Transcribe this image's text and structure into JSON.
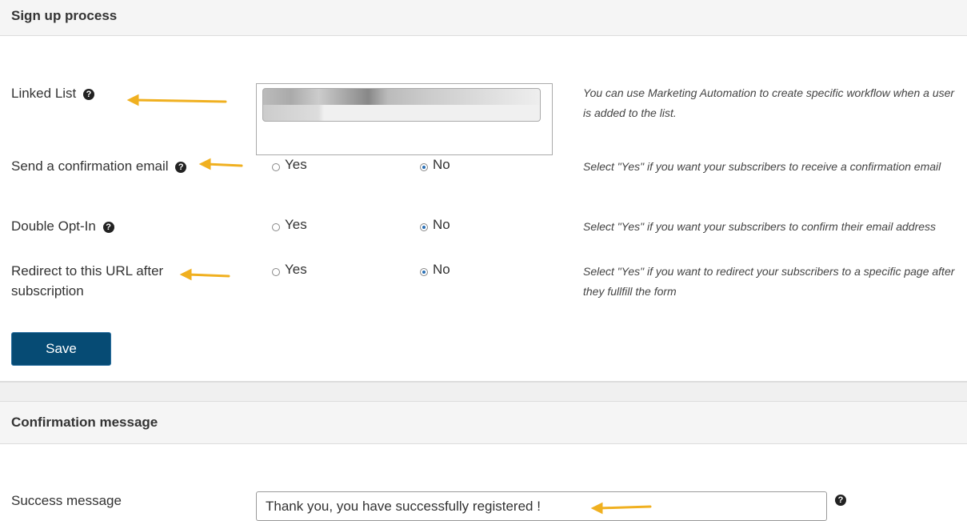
{
  "signup": {
    "title": "Sign up process",
    "linked_list": {
      "label": "Linked List",
      "help": "You can use Marketing Automation to create specific workflow when a user is added to the list."
    },
    "confirmation_email": {
      "label": "Send a confirmation email",
      "yes": "Yes",
      "no": "No",
      "selected": "No",
      "help": "Select \"Yes\" if you want your subscribers to receive a confirmation email"
    },
    "double_optin": {
      "label": "Double Opt-In",
      "yes": "Yes",
      "no": "No",
      "selected": "No",
      "help": "Select \"Yes\" if you want your subscribers to confirm their email address"
    },
    "redirect": {
      "label": "Redirect to this URL after subscription",
      "yes": "Yes",
      "no": "No",
      "selected": "No",
      "help": "Select \"Yes\" if you want to redirect your subscribers to a specific page after they fullfill the form"
    },
    "save_label": "Save"
  },
  "confirmation": {
    "title": "Confirmation message",
    "success_label": "Success message",
    "success_value": "Thank you, you have successfully registered !"
  },
  "colors": {
    "button": "#064b74",
    "arrow": "#f0b020"
  },
  "icons": {
    "help": "question-circle-icon",
    "annotation": "arrow-left-icon"
  }
}
